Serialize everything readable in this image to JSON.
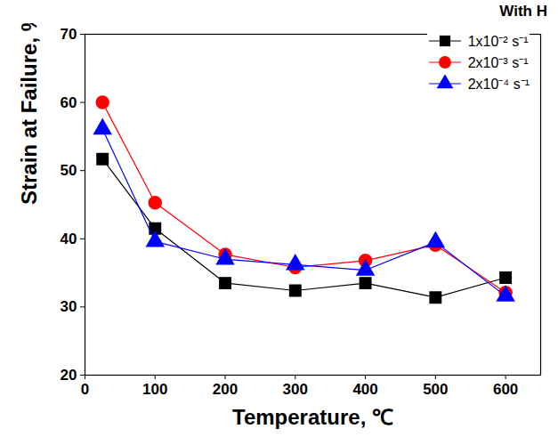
{
  "chart_data": {
    "type": "line",
    "title": "With H",
    "x_label": "Temperature, ℃",
    "y_label": "Strain at Failure, %",
    "x": [
      25,
      100,
      200,
      300,
      400,
      500,
      600
    ],
    "series": [
      {
        "name": "1x10⁻² s⁻¹",
        "color": "#000000",
        "marker": "square",
        "values": [
          51.7,
          41.5,
          33.5,
          32.4,
          33.5,
          31.4,
          34.3
        ]
      },
      {
        "name": "2x10⁻³ s⁻¹",
        "color": "#ff0000",
        "marker": "circle",
        "values": [
          60.0,
          45.3,
          37.7,
          35.8,
          36.8,
          39.1,
          32.1
        ]
      },
      {
        "name": "2x10⁻⁴ s⁻¹",
        "color": "#0000ff",
        "marker": "triangle",
        "values": [
          56.1,
          39.6,
          37.0,
          36.2,
          35.4,
          39.5,
          31.6
        ]
      }
    ],
    "xlim": [
      0,
      650
    ],
    "xticks": [
      0,
      100,
      200,
      300,
      400,
      500,
      600
    ],
    "ylim": [
      20,
      70
    ],
    "yticks": [
      20,
      30,
      40,
      50,
      60,
      70
    ],
    "grid": false,
    "legend": "top-right"
  }
}
